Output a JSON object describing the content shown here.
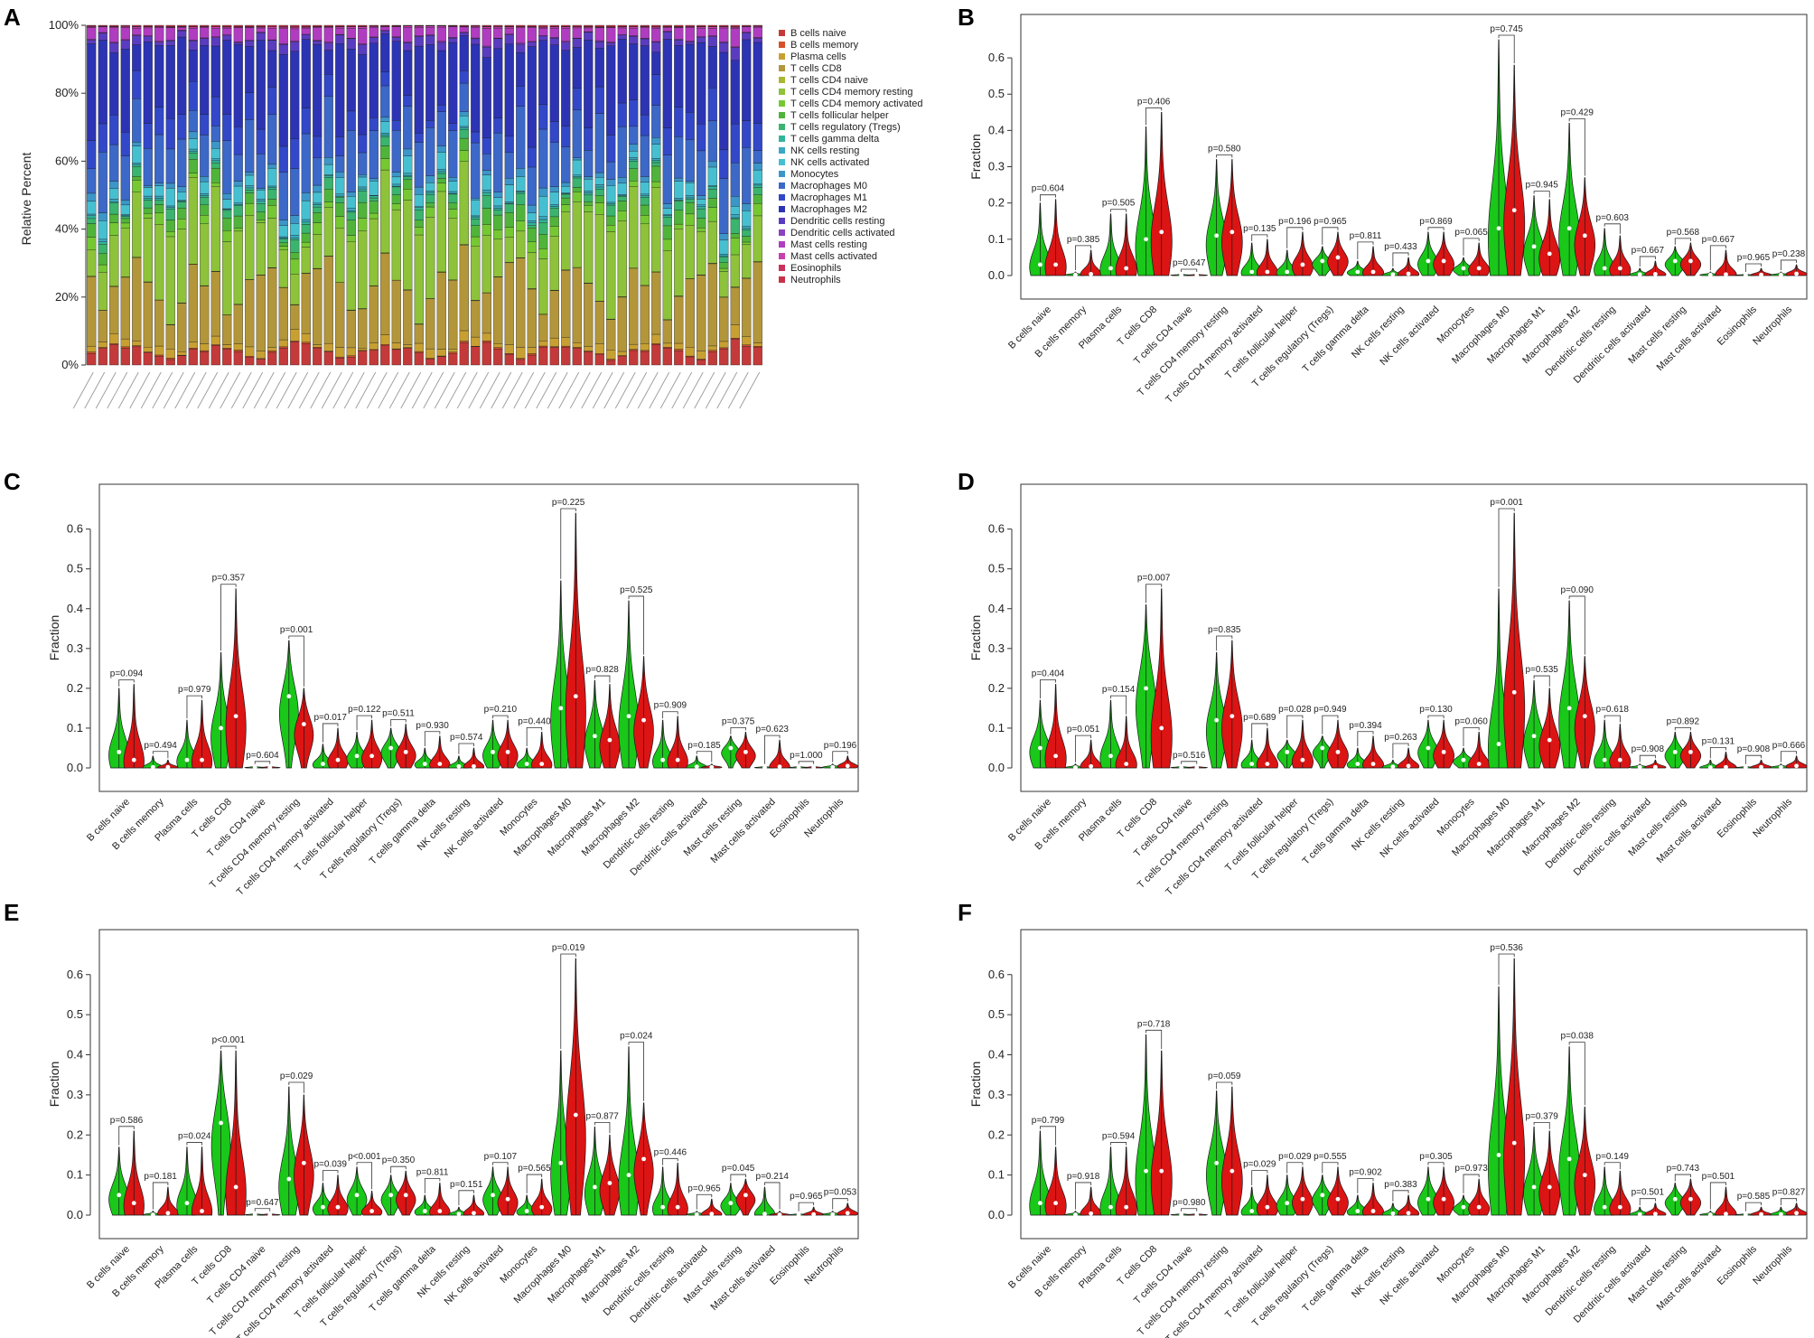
{
  "figure": {
    "panel_letters": [
      "A",
      "B",
      "C",
      "D",
      "E",
      "F"
    ]
  },
  "colors": {
    "group1": "#19c819",
    "group2": "#dc1414",
    "cells": [
      "#c43a3a",
      "#d6512a",
      "#c8a032",
      "#b3963a",
      "#a8b832",
      "#8ec23a",
      "#76c832",
      "#50b43a",
      "#3ab46e",
      "#32b49a",
      "#3aa8c2",
      "#46c0d0",
      "#3c96c8",
      "#3c68c8",
      "#3248c8",
      "#2c34b4",
      "#5a3cc0",
      "#8a42c0",
      "#b03cc0",
      "#c840b0",
      "#c8325a",
      "#c83246"
    ]
  },
  "chart_data": [
    {
      "panel": "A",
      "type": "bar",
      "stacked": true,
      "ylabel": "Relative Percent",
      "yticks": [
        "0%",
        "20%",
        "40%",
        "60%",
        "80%",
        "100%"
      ],
      "ylim": [
        0,
        100
      ],
      "n_samples": 60,
      "sample_label_note": "sample IDs are printed at unreadable size",
      "legend": [
        "B cells naive",
        "B cells memory",
        "Plasma cells",
        "T cells CD8",
        "T cells CD4 naive",
        "T cells CD4 memory resting",
        "T cells CD4 memory activated",
        "T cells follicular helper",
        "T cells regulatory (Tregs)",
        "T cells gamma delta",
        "NK cells resting",
        "NK cells activated",
        "Monocytes",
        "Macrophages M0",
        "Macrophages M1",
        "Macrophages M2",
        "Dendritic cells resting",
        "Dendritic cells activated",
        "Mast cells resting",
        "Mast cells activated",
        "Eosinophils",
        "Neutrophils"
      ],
      "mean_fractions": [
        4,
        0.3,
        2,
        17,
        0.1,
        18,
        2.5,
        3,
        2.2,
        0.5,
        0.5,
        3.5,
        1.5,
        12,
        6,
        20,
        2,
        0.2,
        3,
        0.3,
        0.1,
        0.3
      ]
    },
    {
      "panel": "B",
      "type": "violin",
      "ylabel": "Fraction",
      "ylim": [
        0,
        0.68
      ],
      "yticks": [
        "0.0",
        "0.1",
        "0.2",
        "0.3",
        "0.4",
        "0.5",
        "0.6"
      ],
      "categories": [
        "B cells naive",
        "B cells memory",
        "Plasma cells",
        "T cells CD8",
        "T cells CD4 naive",
        "T cells CD4 memory resting",
        "T cells CD4 memory activated",
        "T cells follicular helper",
        "T cells regulatory (Tregs)",
        "T cells gamma delta",
        "NK cells resting",
        "NK cells activated",
        "Monocytes",
        "Macrophages M0",
        "Macrophages M1",
        "Macrophages M2",
        "Dendritic cells resting",
        "Dendritic cells activated",
        "Mast cells resting",
        "Mast cells activated",
        "Eosinophils",
        "Neutrophils"
      ],
      "pvalues": [
        "p=0.604",
        "p=0.385",
        "p=0.505",
        "p=0.406",
        "p=0.647",
        "p=0.580",
        "p=0.135",
        "p=0.196",
        "p=0.965",
        "p=0.811",
        "p=0.433",
        "p=0.869",
        "p=0.065",
        "p=0.745",
        "p=0.945",
        "p=0.429",
        "p=0.603",
        "p=0.667",
        "p=0.568",
        "p=0.667",
        "p=0.965",
        "p=0.238"
      ],
      "group1_max": [
        0.2,
        0.01,
        0.17,
        0.41,
        0.005,
        0.32,
        0.09,
        0.07,
        0.08,
        0.04,
        0.02,
        0.12,
        0.05,
        0.65,
        0.22,
        0.42,
        0.13,
        0.02,
        0.08,
        0.01,
        0.005,
        0.01
      ],
      "group2_max": [
        0.21,
        0.07,
        0.17,
        0.45,
        0.005,
        0.32,
        0.1,
        0.12,
        0.12,
        0.08,
        0.05,
        0.12,
        0.09,
        0.58,
        0.21,
        0.27,
        0.11,
        0.04,
        0.09,
        0.07,
        0.02,
        0.03
      ],
      "group1_median": [
        0.03,
        0.002,
        0.02,
        0.1,
        0.001,
        0.11,
        0.01,
        0.01,
        0.04,
        0.01,
        0.003,
        0.04,
        0.02,
        0.13,
        0.08,
        0.13,
        0.02,
        0.003,
        0.04,
        0.002,
        0.001,
        0.002
      ],
      "group2_median": [
        0.03,
        0.004,
        0.02,
        0.12,
        0.001,
        0.12,
        0.01,
        0.03,
        0.05,
        0.01,
        0.005,
        0.04,
        0.02,
        0.18,
        0.06,
        0.11,
        0.02,
        0.004,
        0.04,
        0.003,
        0.002,
        0.005
      ]
    },
    {
      "panel": "C",
      "type": "violin",
      "ylabel": "Fraction",
      "ylim": [
        0,
        0.68
      ],
      "yticks": [
        "0.0",
        "0.1",
        "0.2",
        "0.3",
        "0.4",
        "0.5",
        "0.6"
      ],
      "categories": [
        "B cells naive",
        "B cells memory",
        "Plasma cells",
        "T cells CD8",
        "T cells CD4 naive",
        "T cells CD4 memory resting",
        "T cells CD4 memory activated",
        "T cells follicular helper",
        "T cells regulatory (Tregs)",
        "T cells gamma delta",
        "NK cells resting",
        "NK cells activated",
        "Monocytes",
        "Macrophages M0",
        "Macrophages M1",
        "Macrophages M2",
        "Dendritic cells resting",
        "Dendritic cells activated",
        "Mast cells resting",
        "Mast cells activated",
        "Eosinophils",
        "Neutrophils"
      ],
      "pvalues": [
        "p=0.094",
        "p=0.494",
        "p=0.979",
        "p=0.357",
        "p=0.604",
        "p=0.001",
        "p=0.017",
        "p=0.122",
        "p=0.511",
        "p=0.930",
        "p=0.574",
        "p=0.210",
        "p=0.440",
        "p=0.225",
        "p=0.828",
        "p=0.525",
        "p=0.909",
        "p=0.185",
        "p=0.375",
        "p=0.623",
        "p=1.000",
        "p=0.196"
      ],
      "group1_max": [
        0.2,
        0.03,
        0.12,
        0.29,
        0.005,
        0.32,
        0.06,
        0.09,
        0.1,
        0.05,
        0.03,
        0.12,
        0.05,
        0.47,
        0.22,
        0.42,
        0.12,
        0.03,
        0.08,
        0.005,
        0.005,
        0.01
      ],
      "group2_max": [
        0.21,
        0.02,
        0.17,
        0.45,
        0.005,
        0.2,
        0.1,
        0.12,
        0.11,
        0.08,
        0.05,
        0.12,
        0.09,
        0.64,
        0.21,
        0.28,
        0.13,
        0.01,
        0.09,
        0.07,
        0.005,
        0.03
      ],
      "group1_median": [
        0.04,
        0.002,
        0.02,
        0.1,
        0.001,
        0.18,
        0.01,
        0.03,
        0.05,
        0.01,
        0.004,
        0.04,
        0.01,
        0.15,
        0.08,
        0.13,
        0.02,
        0.003,
        0.05,
        0.001,
        0.001,
        0.002
      ],
      "group2_median": [
        0.02,
        0.002,
        0.02,
        0.13,
        0.001,
        0.11,
        0.02,
        0.03,
        0.04,
        0.01,
        0.004,
        0.04,
        0.01,
        0.18,
        0.07,
        0.12,
        0.02,
        0.002,
        0.04,
        0.003,
        0.001,
        0.005
      ]
    },
    {
      "panel": "D",
      "type": "violin",
      "ylabel": "Fraction",
      "ylim": [
        0,
        0.68
      ],
      "yticks": [
        "0.0",
        "0.1",
        "0.2",
        "0.3",
        "0.4",
        "0.5",
        "0.6"
      ],
      "categories": [
        "B cells naive",
        "B cells memory",
        "Plasma cells",
        "T cells CD8",
        "T cells CD4 naive",
        "T cells CD4 memory resting",
        "T cells CD4 memory activated",
        "T cells follicular helper",
        "T cells regulatory (Tregs)",
        "T cells gamma delta",
        "NK cells resting",
        "NK cells activated",
        "Monocytes",
        "Macrophages M0",
        "Macrophages M1",
        "Macrophages M2",
        "Dendritic cells resting",
        "Dendritic cells activated",
        "Mast cells resting",
        "Mast cells activated",
        "Eosinophils",
        "Neutrophils"
      ],
      "pvalues": [
        "p=0.404",
        "p=0.051",
        "p=0.154",
        "p=0.007",
        "p=0.516",
        "p=0.835",
        "p=0.689",
        "p=0.028",
        "p=0.949",
        "p=0.394",
        "p=0.263",
        "p=0.130",
        "p=0.060",
        "p=0.001",
        "p=0.535",
        "p=0.090",
        "p=0.618",
        "p=0.908",
        "p=0.892",
        "p=0.131",
        "p=0.908",
        "p=0.666"
      ],
      "group1_max": [
        0.17,
        0.01,
        0.17,
        0.41,
        0.005,
        0.29,
        0.07,
        0.07,
        0.08,
        0.05,
        0.02,
        0.12,
        0.05,
        0.45,
        0.22,
        0.42,
        0.12,
        0.01,
        0.09,
        0.02,
        0.005,
        0.01
      ],
      "group2_max": [
        0.21,
        0.07,
        0.13,
        0.45,
        0.005,
        0.32,
        0.1,
        0.12,
        0.12,
        0.08,
        0.05,
        0.12,
        0.09,
        0.64,
        0.2,
        0.28,
        0.11,
        0.02,
        0.09,
        0.04,
        0.02,
        0.03
      ],
      "group1_median": [
        0.05,
        0.001,
        0.03,
        0.2,
        0.001,
        0.12,
        0.01,
        0.04,
        0.05,
        0.01,
        0.003,
        0.05,
        0.02,
        0.06,
        0.08,
        0.15,
        0.02,
        0.002,
        0.04,
        0.001,
        0.001,
        0.002
      ],
      "group2_median": [
        0.03,
        0.004,
        0.01,
        0.1,
        0.001,
        0.13,
        0.01,
        0.02,
        0.04,
        0.01,
        0.005,
        0.04,
        0.01,
        0.19,
        0.07,
        0.13,
        0.02,
        0.002,
        0.04,
        0.002,
        0.002,
        0.005
      ]
    },
    {
      "panel": "E",
      "type": "violin",
      "ylabel": "Fraction",
      "ylim": [
        0,
        0.68
      ],
      "yticks": [
        "0.0",
        "0.1",
        "0.2",
        "0.3",
        "0.4",
        "0.5",
        "0.6"
      ],
      "categories": [
        "B cells naive",
        "B cells memory",
        "Plasma cells",
        "T cells CD8",
        "T cells CD4 naive",
        "T cells CD4 memory resting",
        "T cells CD4 memory activated",
        "T cells follicular helper",
        "T cells regulatory (Tregs)",
        "T cells gamma delta",
        "NK cells resting",
        "NK cells activated",
        "Monocytes",
        "Macrophages M0",
        "Macrophages M1",
        "Macrophages M2",
        "Dendritic cells resting",
        "Dendritic cells activated",
        "Mast cells resting",
        "Mast cells activated",
        "Eosinophils",
        "Neutrophils"
      ],
      "pvalues": [
        "p=0.586",
        "p=0.181",
        "p=0.024",
        "p<0.001",
        "p=0.647",
        "p=0.029",
        "p=0.039",
        "p<0.001",
        "p=0.350",
        "p=0.811",
        "p=0.151",
        "p=0.107",
        "p=0.565",
        "p=0.019",
        "p=0.877",
        "p=0.024",
        "p=0.446",
        "p=0.965",
        "p=0.045",
        "p=0.214",
        "p=0.965",
        "p=0.053"
      ],
      "group1_max": [
        0.17,
        0.01,
        0.17,
        0.41,
        0.005,
        0.32,
        0.08,
        0.12,
        0.1,
        0.05,
        0.02,
        0.12,
        0.05,
        0.41,
        0.22,
        0.42,
        0.12,
        0.01,
        0.08,
        0.07,
        0.005,
        0.01
      ],
      "group2_max": [
        0.21,
        0.07,
        0.17,
        0.41,
        0.005,
        0.3,
        0.1,
        0.06,
        0.11,
        0.08,
        0.05,
        0.12,
        0.09,
        0.64,
        0.2,
        0.28,
        0.13,
        0.04,
        0.09,
        0.01,
        0.02,
        0.03
      ],
      "group1_median": [
        0.05,
        0.001,
        0.03,
        0.23,
        0.001,
        0.09,
        0.02,
        0.05,
        0.05,
        0.01,
        0.003,
        0.05,
        0.01,
        0.13,
        0.07,
        0.1,
        0.02,
        0.002,
        0.03,
        0.003,
        0.001,
        0.002
      ],
      "group2_median": [
        0.03,
        0.005,
        0.01,
        0.07,
        0.001,
        0.13,
        0.02,
        0.01,
        0.05,
        0.01,
        0.005,
        0.04,
        0.02,
        0.25,
        0.08,
        0.14,
        0.02,
        0.003,
        0.05,
        0.001,
        0.002,
        0.005
      ]
    },
    {
      "panel": "F",
      "type": "violin",
      "ylabel": "Fraction",
      "ylim": [
        0,
        0.68
      ],
      "yticks": [
        "0.0",
        "0.1",
        "0.2",
        "0.3",
        "0.4",
        "0.5",
        "0.6"
      ],
      "categories": [
        "B cells naive",
        "B cells memory",
        "Plasma cells",
        "T cells CD8",
        "T cells CD4 naive",
        "T cells CD4 memory resting",
        "T cells CD4 memory activated",
        "T cells follicular helper",
        "T cells regulatory (Tregs)",
        "T cells gamma delta",
        "NK cells resting",
        "NK cells activated",
        "Monocytes",
        "Macrophages M0",
        "Macrophages M1",
        "Macrophages M2",
        "Dendritic cells resting",
        "Dendritic cells activated",
        "Mast cells resting",
        "Mast cells activated",
        "Eosinophils",
        "Neutrophils"
      ],
      "pvalues": [
        "p=0.799",
        "p=0.918",
        "p=0.594",
        "p=0.718",
        "p=0.980",
        "p=0.059",
        "p=0.029",
        "p=0.029",
        "p=0.555",
        "p=0.902",
        "p=0.383",
        "p=0.305",
        "p=0.973",
        "p=0.536",
        "p=0.379",
        "p=0.038",
        "p=0.149",
        "p=0.501",
        "p=0.743",
        "p=0.501",
        "p=0.585",
        "p=0.827"
      ],
      "group1_max": [
        0.21,
        0.01,
        0.17,
        0.45,
        0.005,
        0.31,
        0.07,
        0.1,
        0.1,
        0.05,
        0.03,
        0.12,
        0.05,
        0.57,
        0.22,
        0.42,
        0.12,
        0.02,
        0.08,
        0.01,
        0.005,
        0.02
      ],
      "group2_max": [
        0.17,
        0.07,
        0.17,
        0.41,
        0.005,
        0.32,
        0.1,
        0.12,
        0.12,
        0.08,
        0.05,
        0.12,
        0.09,
        0.64,
        0.21,
        0.27,
        0.11,
        0.03,
        0.09,
        0.07,
        0.02,
        0.03
      ],
      "group1_median": [
        0.03,
        0.001,
        0.02,
        0.11,
        0.001,
        0.13,
        0.01,
        0.03,
        0.05,
        0.01,
        0.004,
        0.04,
        0.02,
        0.15,
        0.07,
        0.14,
        0.02,
        0.002,
        0.04,
        0.001,
        0.001,
        0.002
      ],
      "group2_median": [
        0.03,
        0.004,
        0.02,
        0.11,
        0.001,
        0.11,
        0.02,
        0.04,
        0.04,
        0.01,
        0.005,
        0.04,
        0.02,
        0.18,
        0.07,
        0.1,
        0.02,
        0.003,
        0.04,
        0.003,
        0.002,
        0.005
      ]
    }
  ]
}
